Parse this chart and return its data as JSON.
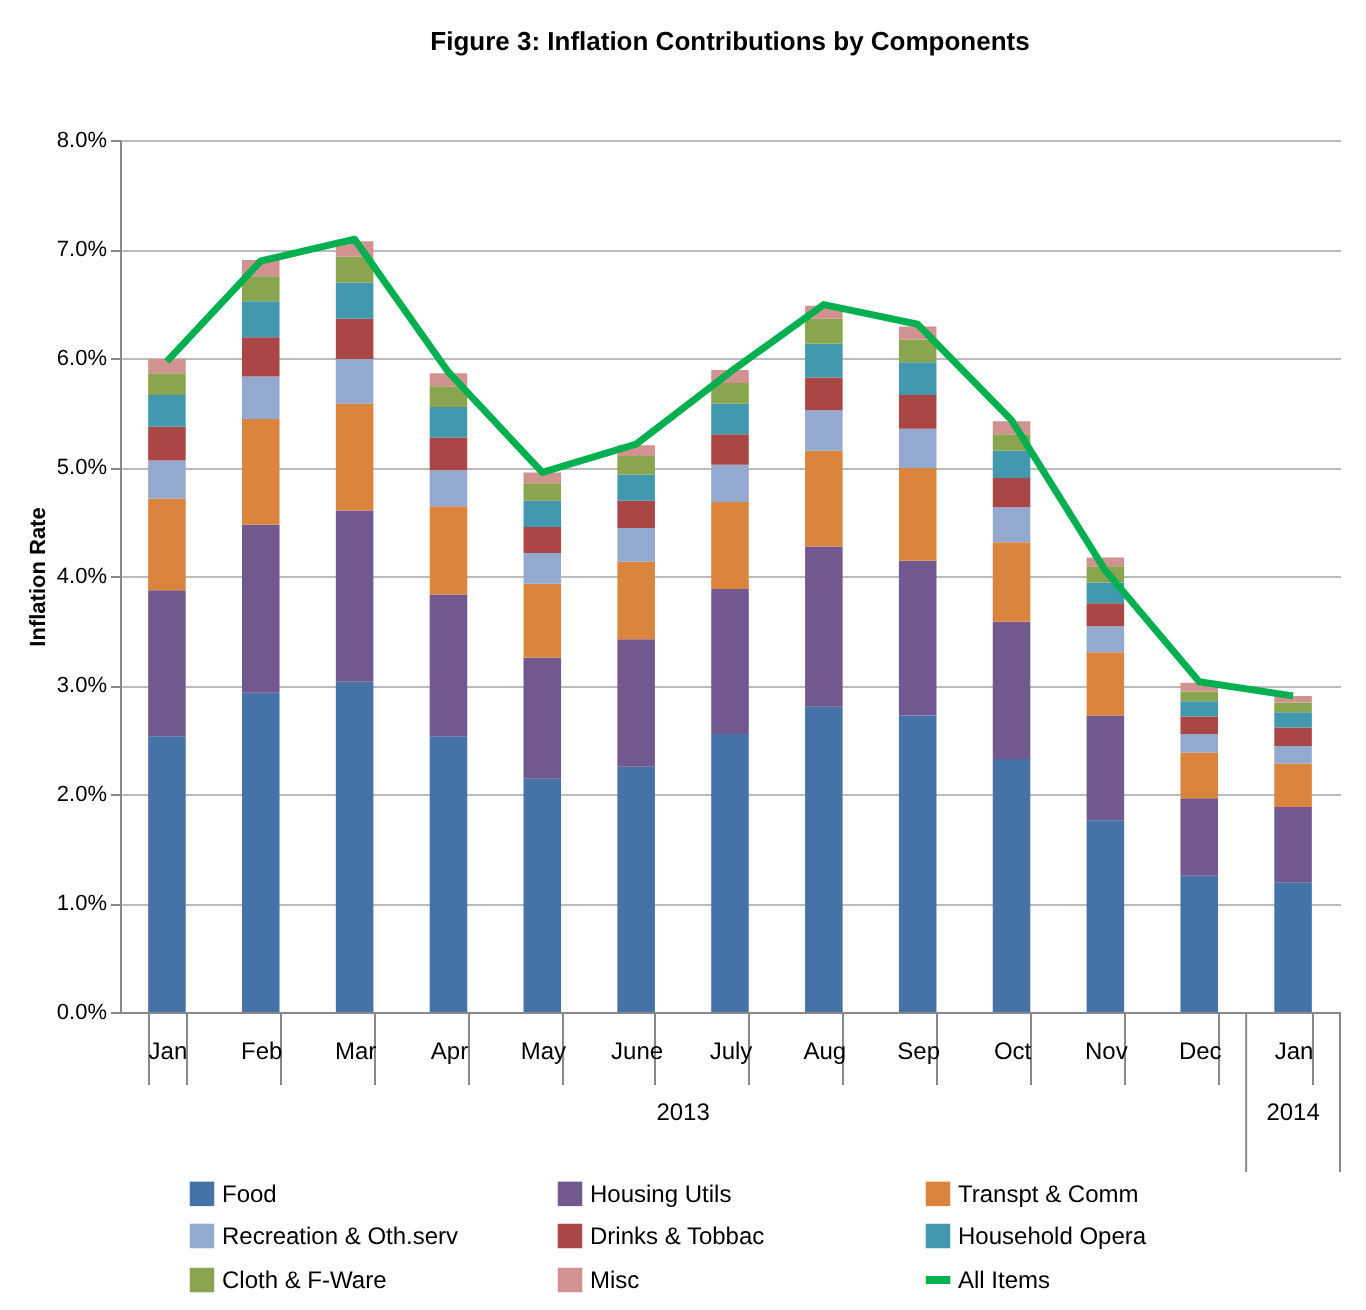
{
  "chart_data": {
    "type": "bar",
    "stacked": true,
    "title": "Figure 3: Inflation Contributions by Components",
    "ylabel": "Inflation Rate",
    "categories": [
      "Jan",
      "Feb",
      "Mar",
      "Apr",
      "May",
      "June",
      "July",
      "Aug",
      "Sep",
      "Oct",
      "Nov",
      "Dec",
      "Jan"
    ],
    "annotations": [
      "2013",
      "2014"
    ],
    "ylim": [
      0,
      8
    ],
    "yticks": [
      {
        "value": 0,
        "label": "0.0%"
      },
      {
        "value": 1,
        "label": "1.0%"
      },
      {
        "value": 2,
        "label": "2.0%"
      },
      {
        "value": 3,
        "label": "3.0%"
      },
      {
        "value": 4,
        "label": "4.0%"
      },
      {
        "value": 5,
        "label": "5.0%"
      },
      {
        "value": 6,
        "label": "6.0%"
      },
      {
        "value": 7,
        "label": "7.0%"
      },
      {
        "value": 8,
        "label": "8.0%"
      }
    ],
    "grid": "y",
    "legend": "bottom",
    "series": [
      {
        "name": "Food",
        "color": "#4572a7",
        "values": [
          2.53,
          2.93,
          3.03,
          2.53,
          2.14,
          2.25,
          2.55,
          2.8,
          2.72,
          2.32,
          1.76,
          1.25,
          1.19
        ]
      },
      {
        "name": "Housing Utils",
        "color": "#71588f",
        "values": [
          1.34,
          1.54,
          1.57,
          1.3,
          1.11,
          1.17,
          1.33,
          1.47,
          1.42,
          1.26,
          0.96,
          0.71,
          0.69
        ]
      },
      {
        "name": "Transpt & Comm",
        "color": "#db843d",
        "values": [
          0.84,
          0.97,
          0.98,
          0.81,
          0.68,
          0.71,
          0.8,
          0.88,
          0.85,
          0.73,
          0.58,
          0.42,
          0.4
        ]
      },
      {
        "name": "Recreation & Oth.serv",
        "color": "#93a9cf",
        "values": [
          0.35,
          0.39,
          0.41,
          0.33,
          0.28,
          0.31,
          0.34,
          0.37,
          0.36,
          0.32,
          0.24,
          0.17,
          0.16
        ]
      },
      {
        "name": "Drinks & Tobbac",
        "color": "#aa4643",
        "values": [
          0.31,
          0.36,
          0.37,
          0.3,
          0.24,
          0.25,
          0.28,
          0.3,
          0.31,
          0.27,
          0.21,
          0.16,
          0.17
        ]
      },
      {
        "name": "Household Opera",
        "color": "#4198af",
        "values": [
          0.29,
          0.33,
          0.33,
          0.28,
          0.24,
          0.24,
          0.28,
          0.31,
          0.3,
          0.25,
          0.19,
          0.14,
          0.14
        ]
      },
      {
        "name": "Cloth & F-Ware",
        "color": "#89a54e",
        "values": [
          0.2,
          0.23,
          0.24,
          0.19,
          0.16,
          0.17,
          0.19,
          0.23,
          0.21,
          0.15,
          0.15,
          0.09,
          0.09
        ]
      },
      {
        "name": "Misc",
        "color": "#d19392",
        "values": [
          0.13,
          0.15,
          0.14,
          0.12,
          0.1,
          0.1,
          0.12,
          0.12,
          0.12,
          0.12,
          0.08,
          0.08,
          0.06
        ]
      },
      {
        "name": "All Items",
        "type": "line",
        "color": "#00b050",
        "values": [
          5.97,
          6.89,
          7.09,
          5.87,
          4.95,
          5.21,
          5.87,
          6.49,
          6.31,
          5.43,
          4.05,
          3.03,
          2.9
        ]
      }
    ]
  }
}
